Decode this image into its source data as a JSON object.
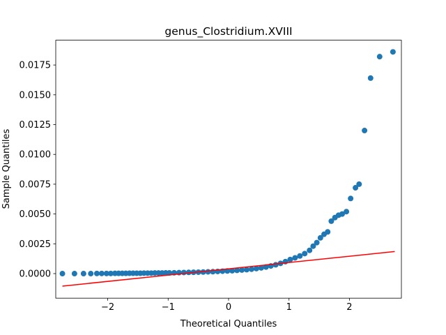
{
  "chart_data": {
    "type": "scatter",
    "title": "genus_Clostridium.XVIII",
    "xlabel": "Theoretical Quantiles",
    "ylabel": "Sample Quantiles",
    "xlim": [
      -2.86,
      2.86
    ],
    "ylim": [
      -0.00206,
      0.01958
    ],
    "xticks": [
      {
        "value": -2,
        "label": "−2"
      },
      {
        "value": -1,
        "label": "−1"
      },
      0,
      1,
      2
    ],
    "yticks": [
      {
        "value": 0,
        "label": "0.0000"
      },
      {
        "value": 0.0025,
        "label": "0.0025"
      },
      {
        "value": 0.005,
        "label": "0.0050"
      },
      {
        "value": 0.0075,
        "label": "0.0075"
      },
      {
        "value": 0.01,
        "label": "0.0100"
      },
      {
        "value": 0.0125,
        "label": "0.0125"
      },
      {
        "value": 0.015,
        "label": "0.0150"
      },
      {
        "value": 0.0175,
        "label": "0.0175"
      }
    ],
    "series": [
      {
        "color": "#1f77b4",
        "style": "points",
        "x": [
          -2.75,
          -2.55,
          -2.4,
          -2.28,
          -2.18,
          -2.1,
          -2.02,
          -1.95,
          -1.88,
          -1.82,
          -1.76,
          -1.7,
          -1.64,
          -1.58,
          -1.52,
          -1.46,
          -1.4,
          -1.34,
          -1.28,
          -1.22,
          -1.16,
          -1.1,
          -1.04,
          -0.98,
          -0.9,
          -0.82,
          -0.74,
          -0.66,
          -0.58,
          -0.5,
          -0.42,
          -0.34,
          -0.26,
          -0.18,
          -0.1,
          -0.02,
          0.06,
          0.14,
          0.22,
          0.3,
          0.38,
          0.46,
          0.54,
          0.62,
          0.7,
          0.78,
          0.86,
          0.94,
          1.02,
          1.1,
          1.18,
          1.26,
          1.34,
          1.4,
          1.46,
          1.52,
          1.58,
          1.64,
          1.7,
          1.76,
          1.82,
          1.88,
          1.95,
          2.02,
          2.1,
          2.16,
          2.25,
          2.35,
          2.5,
          2.72
        ],
        "values": [
          0,
          0,
          0,
          0,
          1e-05,
          1e-05,
          1e-05,
          1e-05,
          2e-05,
          2e-05,
          2e-05,
          2e-05,
          3e-05,
          3e-05,
          3e-05,
          3e-05,
          4e-05,
          4e-05,
          4e-05,
          5e-05,
          5e-05,
          5e-05,
          6e-05,
          6e-05,
          7e-05,
          8e-05,
          9e-05,
          0.0001,
          0.00011,
          0.00012,
          0.00013,
          0.00015,
          0.00016,
          0.00018,
          0.0002,
          0.00022,
          0.00024,
          0.00027,
          0.0003,
          0.00033,
          0.00037,
          0.00042,
          0.00048,
          0.00055,
          0.00064,
          0.00074,
          0.00086,
          0.001,
          0.00118,
          0.00132,
          0.00148,
          0.00168,
          0.00195,
          0.0023,
          0.0026,
          0.003,
          0.0033,
          0.0035,
          0.0044,
          0.0047,
          0.0049,
          0.005,
          0.0052,
          0.0063,
          0.0072,
          0.0075,
          0.012,
          0.0164,
          0.0182,
          0.0186
        ]
      },
      {
        "color": "#ff0000",
        "style": "line",
        "x": [
          -2.75,
          2.75
        ],
        "values": [
          -0.00105,
          0.00185
        ]
      }
    ]
  }
}
